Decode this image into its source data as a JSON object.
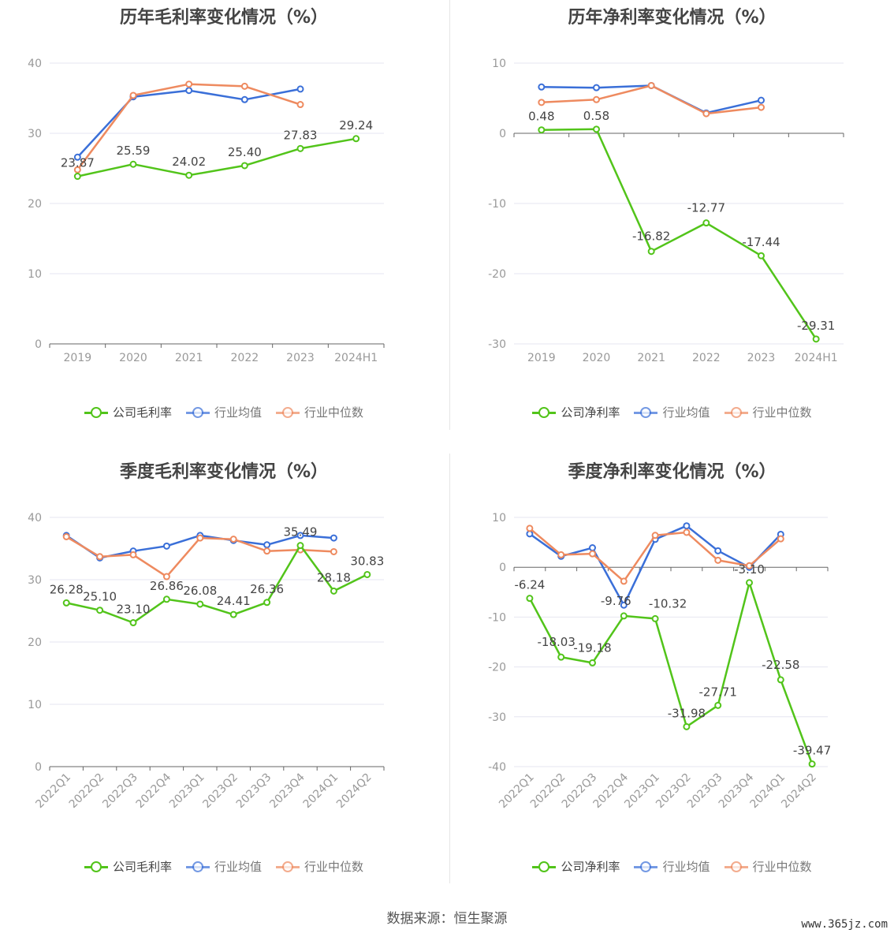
{
  "colors": {
    "company": "#52c41a",
    "industry_avg": "#3a6fd8",
    "industry_median": "#ee8a5f",
    "grid": "#e6e6f0",
    "axis": "#666666",
    "tick_text": "#999999",
    "label_text": "#444444"
  },
  "chart_data": [
    {
      "type": "line",
      "title": "历年毛利率变化情况（%）",
      "categories": [
        "2019",
        "2020",
        "2021",
        "2022",
        "2023",
        "2024H1"
      ],
      "ylim": [
        0,
        40
      ],
      "yticks": [
        0,
        10,
        20,
        30,
        40
      ],
      "grid": true,
      "legend_position": "bottom",
      "series": [
        {
          "name": "公司毛利率",
          "color_key": "company",
          "labels": true,
          "values": [
            23.87,
            25.59,
            24.02,
            25.4,
            27.83,
            29.24
          ]
        },
        {
          "name": "行业均值",
          "color_key": "industry_avg",
          "labels": false,
          "values": [
            26.6,
            35.2,
            36.1,
            34.8,
            36.3,
            null
          ]
        },
        {
          "name": "行业中位数",
          "color_key": "industry_median",
          "labels": false,
          "values": [
            24.8,
            35.4,
            37.0,
            36.7,
            34.1,
            null
          ]
        }
      ]
    },
    {
      "type": "line",
      "title": "历年净利率变化情况（%）",
      "categories": [
        "2019",
        "2020",
        "2021",
        "2022",
        "2023",
        "2024H1"
      ],
      "ylim": [
        -30,
        10
      ],
      "yticks": [
        -30,
        -20,
        -10,
        0,
        10
      ],
      "grid": true,
      "legend_position": "bottom",
      "series": [
        {
          "name": "公司净利率",
          "color_key": "company",
          "labels": true,
          "values": [
            0.48,
            0.58,
            -16.82,
            -12.77,
            -17.44,
            -29.31
          ]
        },
        {
          "name": "行业均值",
          "color_key": "industry_avg",
          "labels": false,
          "values": [
            6.6,
            6.5,
            6.8,
            2.9,
            4.7,
            null
          ]
        },
        {
          "name": "行业中位数",
          "color_key": "industry_median",
          "labels": false,
          "values": [
            4.4,
            4.8,
            6.8,
            2.8,
            3.7,
            null
          ]
        }
      ]
    },
    {
      "type": "line",
      "title": "季度毛利率变化情况（%）",
      "categories": [
        "2022Q1",
        "2022Q2",
        "2022Q3",
        "2022Q4",
        "2023Q1",
        "2023Q2",
        "2023Q3",
        "2023Q4",
        "2024Q1",
        "2024Q2"
      ],
      "ylim": [
        0,
        40
      ],
      "yticks": [
        0,
        10,
        20,
        30,
        40
      ],
      "grid": true,
      "legend_position": "bottom",
      "series": [
        {
          "name": "公司毛利率",
          "color_key": "company",
          "labels": true,
          "values": [
            26.28,
            25.1,
            23.1,
            26.86,
            26.08,
            24.41,
            26.36,
            35.49,
            28.18,
            30.83
          ]
        },
        {
          "name": "行业均值",
          "color_key": "industry_avg",
          "labels": false,
          "values": [
            37.1,
            33.5,
            34.6,
            35.4,
            37.1,
            36.3,
            35.6,
            37.1,
            36.7,
            null
          ]
        },
        {
          "name": "行业中位数",
          "color_key": "industry_median",
          "labels": false,
          "values": [
            36.9,
            33.7,
            34.0,
            30.5,
            36.7,
            36.5,
            34.6,
            34.8,
            34.5,
            null
          ]
        }
      ]
    },
    {
      "type": "line",
      "title": "季度净利率变化情况（%）",
      "categories": [
        "2022Q1",
        "2022Q2",
        "2022Q3",
        "2022Q4",
        "2023Q1",
        "2023Q2",
        "2023Q3",
        "2023Q4",
        "2024Q1",
        "2024Q2"
      ],
      "ylim": [
        -40,
        10
      ],
      "yticks": [
        -40,
        -30,
        -20,
        -10,
        0,
        10
      ],
      "grid": true,
      "legend_position": "bottom",
      "series": [
        {
          "name": "公司净利率",
          "color_key": "company",
          "labels": true,
          "values": [
            -6.24,
            -18.03,
            -19.18,
            -9.76,
            -10.32,
            -31.98,
            -27.71,
            -3.1,
            -22.58,
            -39.47
          ]
        },
        {
          "name": "行业均值",
          "color_key": "industry_avg",
          "labels": false,
          "values": [
            6.7,
            2.2,
            3.9,
            -7.6,
            5.6,
            8.3,
            3.3,
            0.0,
            6.6,
            null
          ]
        },
        {
          "name": "行业中位数",
          "color_key": "industry_median",
          "labels": false,
          "values": [
            7.8,
            2.5,
            2.7,
            -2.8,
            6.4,
            7.0,
            1.4,
            0.3,
            5.7,
            null
          ]
        }
      ]
    }
  ],
  "footer": {
    "source": "数据来源：恒生聚源"
  },
  "watermark": "www.365jz.com"
}
